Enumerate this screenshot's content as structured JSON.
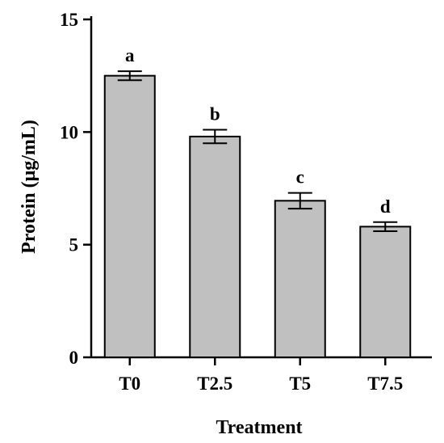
{
  "chart_data": {
    "type": "bar",
    "categories": [
      "T0",
      "T2.5",
      "T5",
      "T7.5"
    ],
    "values": [
      12.5,
      9.8,
      6.95,
      5.8
    ],
    "errors": [
      0.2,
      0.3,
      0.35,
      0.2
    ],
    "significance_labels": [
      "a",
      "b",
      "c",
      "d"
    ],
    "xlabel": "Treatment",
    "ylabel": "Protein (μg/mL)",
    "ylim": [
      0,
      15
    ],
    "yticks": [
      "0",
      "5",
      "10",
      "15"
    ],
    "bar_color": "#c0c0c0",
    "edge_color": "#000000",
    "grid": false,
    "legend": "none"
  }
}
